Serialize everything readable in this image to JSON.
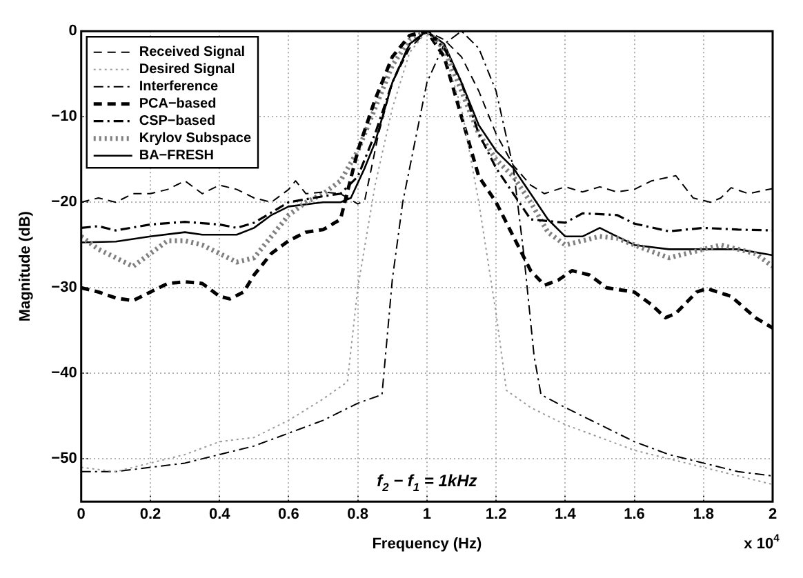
{
  "chart_data": {
    "type": "line",
    "xlabel": "Frequency (Hz)",
    "ylabel": "Magnitude (dB)",
    "annotations": [
      "f$_{2}$ − f$_{1}$ = 1kHz",
      "x 10$^{4}$"
    ],
    "xlim": [
      0,
      2
    ],
    "xticks": [
      0,
      0.2,
      0.4,
      0.6,
      0.8,
      1,
      1.2,
      1.4,
      1.6,
      1.8,
      2
    ],
    "ylim": [
      -55,
      0
    ],
    "yticks": [
      -50,
      -40,
      -30,
      -20,
      -10,
      0
    ],
    "grid": true,
    "legend": "top left",
    "marker": "none",
    "series": [
      {
        "name": "Received Signal",
        "color": "#000000",
        "line_style": "dashed",
        "x": [
          0,
          0.05,
          0.1,
          0.15,
          0.2,
          0.25,
          0.3,
          0.35,
          0.4,
          0.45,
          0.5,
          0.55,
          0.6,
          0.62,
          0.65,
          0.7,
          0.75,
          0.8,
          0.82,
          0.86,
          0.9,
          0.95,
          1,
          1.05,
          1.1,
          1.15,
          1.2,
          1.25,
          1.3,
          1.34,
          1.4,
          1.45,
          1.5,
          1.55,
          1.6,
          1.65,
          1.72,
          1.77,
          1.82,
          1.85,
          1.88,
          1.93,
          2
        ],
        "values": [
          -20,
          -19.5,
          -20,
          -19,
          -19,
          -18.5,
          -17.5,
          -19,
          -18,
          -18.5,
          -19.5,
          -20,
          -18.5,
          -17.5,
          -19,
          -18.8,
          -19,
          -20.2,
          -19.8,
          -12,
          -6,
          -2,
          0,
          -1,
          -3,
          -7,
          -12,
          -15.7,
          -18,
          -19,
          -18.2,
          -18.8,
          -18.2,
          -18.8,
          -18.5,
          -17.5,
          -16.9,
          -19.5,
          -20,
          -19.5,
          -18.3,
          -19,
          -18.4
        ]
      },
      {
        "name": "Desired Signal",
        "color": "#999999",
        "line_style": "dotted",
        "x": [
          0,
          0.1,
          0.2,
          0.3,
          0.4,
          0.5,
          0.6,
          0.7,
          0.77,
          0.8,
          0.85,
          0.9,
          0.95,
          1,
          1.05,
          1.1,
          1.15,
          1.2,
          1.23,
          1.3,
          1.4,
          1.5,
          1.6,
          1.7,
          1.8,
          1.9,
          2
        ],
        "values": [
          -51,
          -51.5,
          -50.5,
          -49.5,
          -48,
          -47.5,
          -45.5,
          -43,
          -41,
          -30,
          -18,
          -9,
          -2.5,
          0,
          -2.5,
          -9,
          -20,
          -33,
          -42,
          -44,
          -46,
          -47.5,
          -49,
          -50,
          -51,
          -52,
          -53
        ]
      },
      {
        "name": "Interference",
        "color": "#000000",
        "line_style": "dashdot",
        "x": [
          0,
          0.1,
          0.2,
          0.3,
          0.4,
          0.5,
          0.6,
          0.7,
          0.8,
          0.87,
          0.9,
          0.93,
          0.97,
          1,
          1.05,
          1.1,
          1.15,
          1.2,
          1.25,
          1.28,
          1.31,
          1.33,
          1.4,
          1.5,
          1.6,
          1.7,
          1.8,
          1.9,
          2
        ],
        "values": [
          -51.5,
          -51.5,
          -51,
          -50.5,
          -49.5,
          -48.5,
          -47,
          -45.5,
          -43.5,
          -42.5,
          -29,
          -20,
          -12,
          -6,
          -1.5,
          0,
          -2,
          -7,
          -16,
          -26,
          -38,
          -42.5,
          -44,
          -46,
          -48,
          -49.5,
          -50.5,
          -51.5,
          -52
        ]
      },
      {
        "name": "PCA−based",
        "color": "#000000",
        "line_style": "dashed",
        "x": [
          0,
          0.05,
          0.1,
          0.15,
          0.2,
          0.25,
          0.3,
          0.35,
          0.4,
          0.43,
          0.47,
          0.5,
          0.55,
          0.6,
          0.65,
          0.7,
          0.75,
          0.8,
          0.85,
          0.9,
          0.95,
          1,
          1.05,
          1.1,
          1.15,
          1.2,
          1.25,
          1.3,
          1.34,
          1.38,
          1.42,
          1.47,
          1.52,
          1.6,
          1.65,
          1.69,
          1.72,
          1.78,
          1.81,
          1.88,
          1.95,
          2
        ],
        "values": [
          -30,
          -30.5,
          -31.2,
          -31.5,
          -30.5,
          -29.5,
          -29.3,
          -29.5,
          -31,
          -31.3,
          -30.5,
          -28.5,
          -26,
          -24.5,
          -23.5,
          -23.2,
          -22,
          -14,
          -8,
          -3,
          -0.5,
          0,
          -3,
          -10,
          -17,
          -20,
          -24,
          -28,
          -29.7,
          -29.1,
          -28,
          -28.5,
          -30,
          -30.5,
          -32,
          -33.5,
          -33,
          -30.5,
          -30.1,
          -31,
          -33.5,
          -34.7
        ]
      },
      {
        "name": "CSP−based",
        "color": "#000000",
        "line_style": "dashdot",
        "x": [
          0,
          0.05,
          0.1,
          0.2,
          0.3,
          0.4,
          0.45,
          0.5,
          0.6,
          0.7,
          0.75,
          0.8,
          0.85,
          0.9,
          0.95,
          1,
          1.05,
          1.1,
          1.15,
          1.2,
          1.25,
          1.3,
          1.4,
          1.45,
          1.55,
          1.6,
          1.7,
          1.8,
          1.9,
          2
        ],
        "values": [
          -23,
          -22.8,
          -23.3,
          -22.6,
          -22.3,
          -22.6,
          -23,
          -22.4,
          -20,
          -19.3,
          -19,
          -17,
          -12,
          -6,
          -1.5,
          0,
          -2,
          -6,
          -12,
          -16,
          -19,
          -22,
          -22.4,
          -21.3,
          -21.5,
          -22.5,
          -23.4,
          -23,
          -23.2,
          -23.3
        ]
      },
      {
        "name": "Krylov Subspace",
        "color": "#808080",
        "line_style": "dotted",
        "x": [
          0,
          0.05,
          0.1,
          0.15,
          0.2,
          0.25,
          0.3,
          0.35,
          0.4,
          0.45,
          0.5,
          0.55,
          0.6,
          0.65,
          0.7,
          0.75,
          0.8,
          0.85,
          0.9,
          0.95,
          1,
          1.05,
          1.1,
          1.15,
          1.2,
          1.25,
          1.3,
          1.35,
          1.4,
          1.5,
          1.55,
          1.6,
          1.7,
          1.8,
          1.85,
          1.95,
          2
        ],
        "values": [
          -24,
          -25.5,
          -26.5,
          -27.5,
          -26,
          -24.5,
          -24.5,
          -25,
          -26,
          -27,
          -26.5,
          -24,
          -21.5,
          -20,
          -19,
          -17.5,
          -14,
          -9,
          -4,
          -1,
          0,
          -2,
          -7,
          -12,
          -15,
          -17,
          -20,
          -23.5,
          -25,
          -24,
          -24.2,
          -25,
          -26.5,
          -25.5,
          -25,
          -26,
          -27.5
        ]
      },
      {
        "name": "BA−FRESH",
        "color": "#000000",
        "line_style": "solid",
        "x": [
          0,
          0.1,
          0.2,
          0.3,
          0.35,
          0.45,
          0.5,
          0.55,
          0.6,
          0.7,
          0.75,
          0.78,
          0.82,
          0.85,
          0.9,
          0.95,
          1,
          1.05,
          1.1,
          1.15,
          1.2,
          1.25,
          1.3,
          1.35,
          1.4,
          1.45,
          1.5,
          1.55,
          1.6,
          1.7,
          1.8,
          1.9,
          2
        ],
        "values": [
          -24.7,
          -24.6,
          -24,
          -23.5,
          -23.8,
          -23.8,
          -23,
          -21.5,
          -20.5,
          -20,
          -20,
          -19.5,
          -16,
          -13,
          -6,
          -1.5,
          0,
          -1.5,
          -6,
          -11,
          -14,
          -16,
          -19,
          -22,
          -24,
          -24,
          -23,
          -24,
          -25,
          -25.5,
          -25.5,
          -25.5,
          -26.2
        ]
      }
    ]
  }
}
